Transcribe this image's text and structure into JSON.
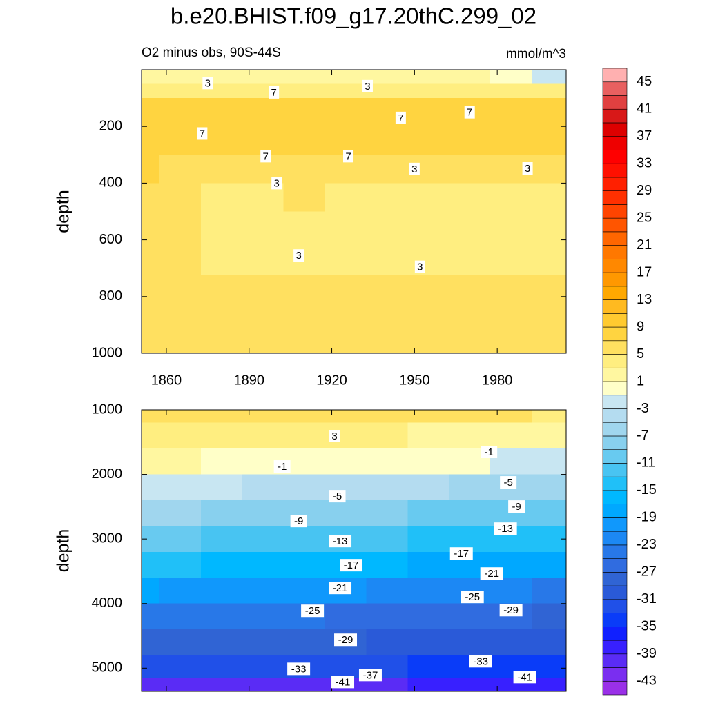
{
  "chart_data": {
    "type": "contour",
    "title": "b.e20.BHIST.f09_g17.20thC.299_02",
    "subtitle": "O2 minus obs, 90S-44S",
    "units": "mmol/m^3",
    "panels": [
      {
        "y_label": "depth",
        "y_reversed": true,
        "xlim": [
          1851,
          2005
        ],
        "ylim": [
          0,
          1000
        ],
        "xticks": [
          1860,
          1890,
          1920,
          1950,
          1980
        ],
        "xtick_labels": true,
        "yticks": [
          200,
          400,
          600,
          800,
          1000
        ],
        "x": [
          1850,
          1865,
          1880,
          1895,
          1910,
          1925,
          1940,
          1955,
          1970,
          1985,
          2000
        ],
        "y": [
          25,
          75,
          125,
          175,
          250,
          350,
          450,
          550,
          650,
          800,
          950
        ],
        "z": [
          [
            2,
            2,
            2,
            2,
            2,
            2,
            2,
            2,
            1,
            0,
            -2
          ],
          [
            4,
            4,
            4,
            4,
            4,
            4,
            4,
            4,
            4,
            4,
            3
          ],
          [
            8,
            8,
            7,
            8,
            8,
            7,
            8,
            8,
            8,
            7,
            7
          ],
          [
            8,
            8,
            8,
            8,
            8,
            8,
            8,
            8,
            8,
            8,
            7
          ],
          [
            8,
            8,
            7,
            8,
            7,
            8,
            7,
            7,
            7,
            7,
            7
          ],
          [
            7,
            6,
            6,
            6,
            6,
            6,
            5,
            5,
            5,
            5,
            5
          ],
          [
            5,
            5,
            4,
            3,
            5,
            3,
            3,
            3,
            4,
            4,
            3
          ],
          [
            5,
            5,
            4,
            3,
            4,
            3,
            3,
            3,
            3,
            3,
            3
          ],
          [
            5,
            5,
            4,
            3,
            4,
            3,
            3,
            3,
            3,
            3,
            3
          ],
          [
            6,
            6,
            6,
            5,
            5,
            5,
            5,
            5,
            5,
            5,
            5
          ],
          [
            6,
            6,
            6,
            6,
            5,
            5,
            5,
            5,
            6,
            5,
            5
          ]
        ],
        "contour_labels": [
          {
            "x": 1875,
            "y": 47,
            "value": 3
          },
          {
            "x": 1899,
            "y": 80,
            "value": 7
          },
          {
            "x": 1933,
            "y": 58,
            "value": 3
          },
          {
            "x": 1945,
            "y": 170,
            "value": 7
          },
          {
            "x": 1970,
            "y": 150,
            "value": 7
          },
          {
            "x": 1873,
            "y": 225,
            "value": 7
          },
          {
            "x": 1896,
            "y": 305,
            "value": 7
          },
          {
            "x": 1926,
            "y": 305,
            "value": 7
          },
          {
            "x": 1950,
            "y": 350,
            "value": 3
          },
          {
            "x": 1991,
            "y": 348,
            "value": 3
          },
          {
            "x": 1900,
            "y": 400,
            "value": 3
          },
          {
            "x": 1908,
            "y": 655,
            "value": 3
          },
          {
            "x": 1952,
            "y": 695,
            "value": 3
          }
        ]
      },
      {
        "y_label": "depth",
        "y_reversed": true,
        "xlim": [
          1851,
          2005
        ],
        "ylim": [
          1000,
          5360
        ],
        "xticks": [
          1860,
          1890,
          1920,
          1950,
          1980
        ],
        "xtick_labels": false,
        "yticks": [
          1000,
          2000,
          3000,
          4000,
          5000
        ],
        "x": [
          1850,
          1865,
          1880,
          1895,
          1910,
          1925,
          1940,
          1955,
          1970,
          1985,
          2000
        ],
        "y": [
          1000,
          1400,
          1800,
          2200,
          2600,
          3000,
          3400,
          3800,
          4200,
          4600,
          5000,
          5300
        ],
        "z": [
          [
            5,
            5,
            5,
            5,
            5,
            5,
            5,
            5,
            5,
            5,
            4
          ],
          [
            3,
            3,
            3,
            3,
            3,
            3,
            3,
            2,
            2,
            2,
            2
          ],
          [
            1,
            1,
            0,
            0,
            0,
            0,
            -1,
            -1,
            -1,
            -2,
            -2
          ],
          [
            -3,
            -3,
            -3,
            -4,
            -4,
            -4,
            -5,
            -5,
            -6,
            -6,
            -7
          ],
          [
            -7,
            -7,
            -8,
            -8,
            -8,
            -9,
            -9,
            -10,
            -10,
            -11,
            -11
          ],
          [
            -11,
            -11,
            -12,
            -12,
            -13,
            -13,
            -13,
            -14,
            -14,
            -15,
            -15
          ],
          [
            -15,
            -15,
            -16,
            -16,
            -17,
            -17,
            -17,
            -18,
            -18,
            -19,
            -19
          ],
          [
            -19,
            -20,
            -20,
            -21,
            -21,
            -21,
            -22,
            -22,
            -23,
            -23,
            -24
          ],
          [
            -24,
            -24,
            -25,
            -25,
            -25,
            -26,
            -26,
            -26,
            -27,
            -27,
            -28
          ],
          [
            -28,
            -28,
            -28,
            -29,
            -29,
            -29,
            -30,
            -30,
            -30,
            -31,
            -31
          ],
          [
            -32,
            -32,
            -32,
            -33,
            -33,
            -33,
            -33,
            -34,
            -34,
            -35,
            -35
          ],
          [
            -40,
            -40,
            -40,
            -40,
            -40,
            -40,
            -40,
            -39,
            -39,
            -38,
            -38
          ]
        ],
        "contour_labels": [
          {
            "x": 1921,
            "y": 1406,
            "value": 3
          },
          {
            "x": 1977,
            "y": 1652,
            "value": -1
          },
          {
            "x": 1902,
            "y": 1877,
            "value": -1
          },
          {
            "x": 1922,
            "y": 2337,
            "value": -5
          },
          {
            "x": 1984,
            "y": 2123,
            "value": -5
          },
          {
            "x": 1987,
            "y": 2497,
            "value": -9
          },
          {
            "x": 1908,
            "y": 2722,
            "value": -9
          },
          {
            "x": 1983,
            "y": 2840,
            "value": -13
          },
          {
            "x": 1923,
            "y": 3032,
            "value": -13
          },
          {
            "x": 1967,
            "y": 3225,
            "value": -17
          },
          {
            "x": 1927,
            "y": 3406,
            "value": -17
          },
          {
            "x": 1978,
            "y": 3535,
            "value": -21
          },
          {
            "x": 1923,
            "y": 3759,
            "value": -21
          },
          {
            "x": 1971,
            "y": 3898,
            "value": -25
          },
          {
            "x": 1913,
            "y": 4112,
            "value": -25
          },
          {
            "x": 1985,
            "y": 4102,
            "value": -29
          },
          {
            "x": 1925,
            "y": 4561,
            "value": -29
          },
          {
            "x": 1974,
            "y": 4893,
            "value": -33
          },
          {
            "x": 1908,
            "y": 5011,
            "value": -33
          },
          {
            "x": 1934,
            "y": 5107,
            "value": -37
          },
          {
            "x": 1924,
            "y": 5214,
            "value": -41
          },
          {
            "x": 1990,
            "y": 5139,
            "value": -41
          }
        ]
      }
    ],
    "colorbar": {
      "levels": [
        -43,
        -41,
        -39,
        -37,
        -35,
        -33,
        -31,
        -29,
        -27,
        -25,
        -23,
        -21,
        -19,
        -17,
        -15,
        -13,
        -11,
        -9,
        -7,
        -5,
        -3,
        -1,
        1,
        3,
        5,
        7,
        9,
        11,
        13,
        15,
        17,
        19,
        21,
        23,
        25,
        27,
        29,
        31,
        33,
        35,
        37,
        39,
        41,
        43,
        45
      ],
      "ticks": [
        -43,
        -39,
        -35,
        -31,
        -27,
        -23,
        -19,
        -15,
        -11,
        -7,
        -3,
        1,
        5,
        9,
        13,
        17,
        21,
        25,
        29,
        33,
        37,
        41,
        45
      ],
      "colors": [
        "#9a30e8",
        "#7a2ef0",
        "#5a2cf5",
        "#3820ff",
        "#1020ff",
        "#0a3cf8",
        "#2050e8",
        "#2a5ad8",
        "#3064d4",
        "#306ce0",
        "#2878e8",
        "#1c88f4",
        "#1098fc",
        "#00a8ff",
        "#00b8ff",
        "#20c0f8",
        "#48c4f2",
        "#68caf0",
        "#88d0ee",
        "#a0d6ee",
        "#b4dcf0",
        "#c8e6f2",
        "#ffffc8",
        "#fff7a0",
        "#ffee80",
        "#ffe060",
        "#ffd440",
        "#ffca30",
        "#ffba20",
        "#ffa800",
        "#ff9800",
        "#ff8800",
        "#ff7800",
        "#ff6600",
        "#ff5500",
        "#ff4400",
        "#ff3000",
        "#ff2000",
        "#ff1000",
        "#ff0000",
        "#ee0000",
        "#dd0000",
        "#d81818",
        "#e04040",
        "#e86060",
        "#ffb0b0"
      ]
    }
  }
}
